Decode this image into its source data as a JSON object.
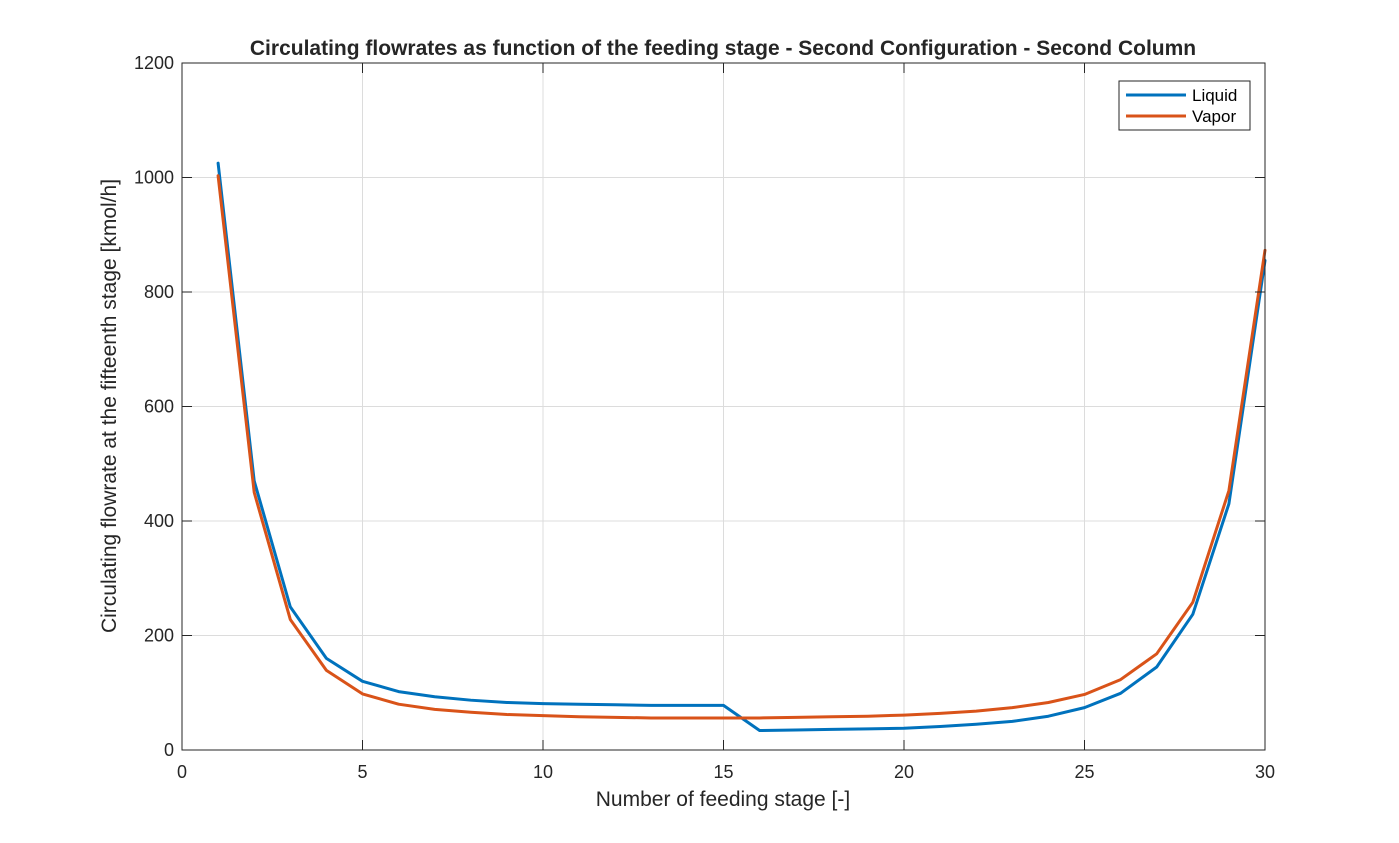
{
  "chart_data": {
    "type": "line",
    "title": "Circulating flowrates as function of the feeding stage - Second Configuration - Second Column",
    "xlabel": "Number of feeding stage [-]",
    "ylabel": "Circulating flowrate at the fifteenth stage [kmol/h]",
    "xlim": [
      0,
      30
    ],
    "ylim": [
      0,
      1200
    ],
    "xticks": [
      0,
      5,
      10,
      15,
      20,
      25,
      30
    ],
    "yticks": [
      0,
      200,
      400,
      600,
      800,
      1000,
      1200
    ],
    "grid": true,
    "legend_position": "top-right",
    "x": [
      1,
      2,
      3,
      4,
      5,
      6,
      7,
      8,
      9,
      10,
      11,
      12,
      13,
      14,
      15,
      16,
      17,
      18,
      19,
      20,
      21,
      22,
      23,
      24,
      25,
      26,
      27,
      28,
      29,
      30
    ],
    "series": [
      {
        "name": "Liquid",
        "color": "#0072bd",
        "values": [
          1025,
          470,
          250,
          160,
          120,
          102,
          93,
          87,
          83,
          81,
          80,
          79,
          78,
          78,
          78,
          34,
          35,
          36,
          37,
          38,
          41,
          45,
          50,
          59,
          74,
          99,
          145,
          237,
          430,
          855
        ]
      },
      {
        "name": "Vapor",
        "color": "#d95319",
        "values": [
          1003,
          450,
          228,
          139,
          98,
          80,
          71,
          66,
          62,
          60,
          58,
          57,
          56,
          56,
          56,
          56,
          57,
          58,
          59,
          61,
          64,
          68,
          74,
          83,
          97,
          123,
          168,
          258,
          453,
          873
        ]
      }
    ]
  }
}
